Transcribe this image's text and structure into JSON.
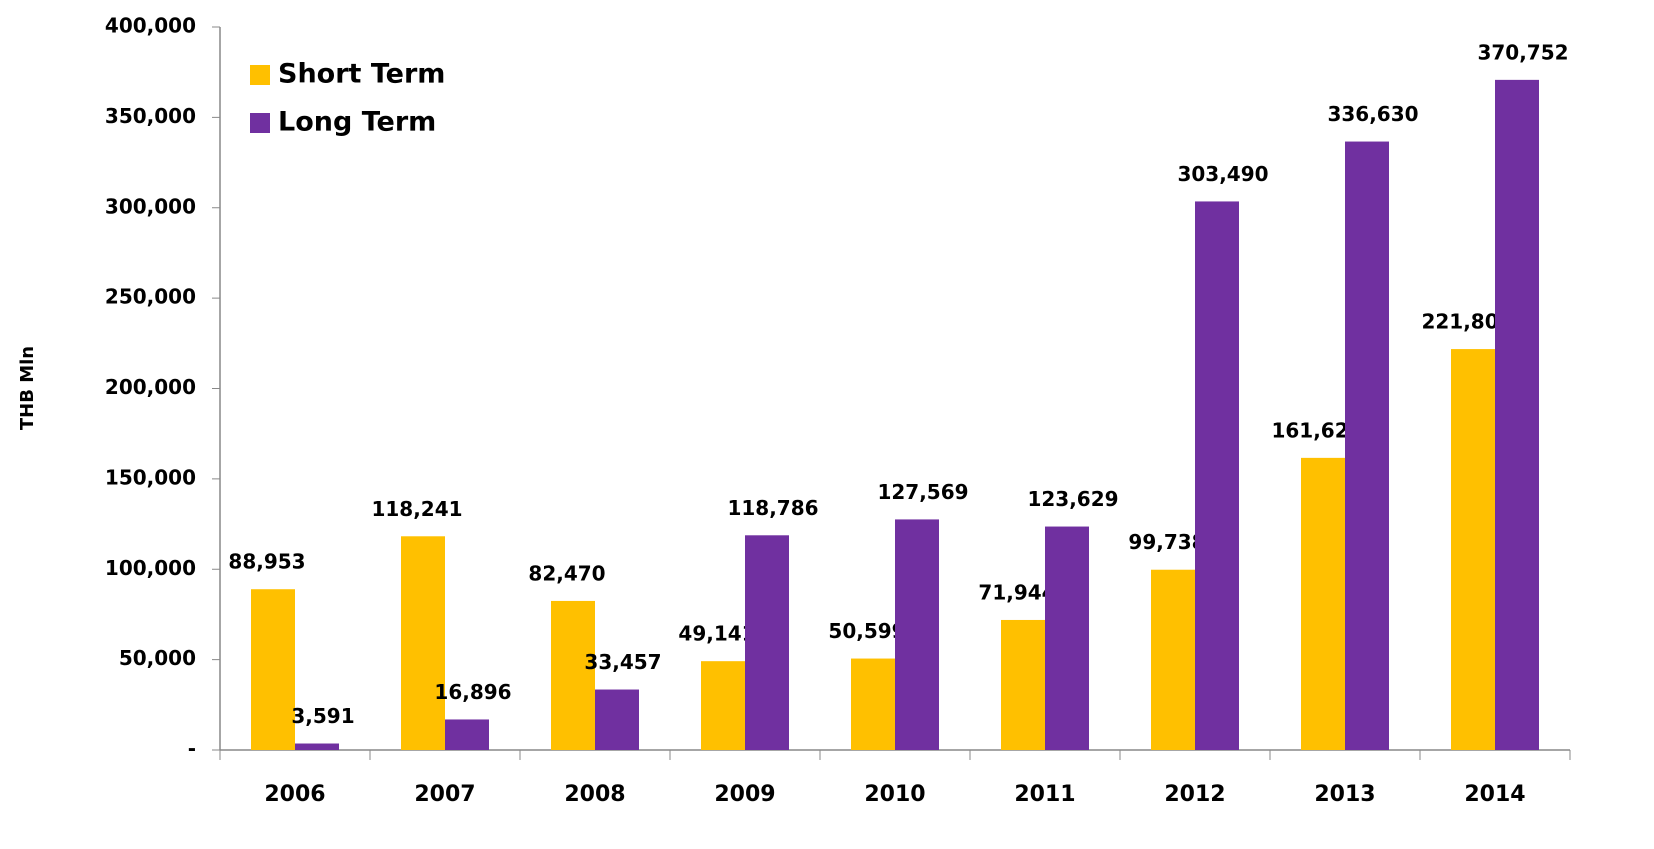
{
  "chart_data": {
    "type": "bar",
    "y_axis_label": "THB Mln",
    "categories": [
      "2006",
      "2007",
      "2008",
      "2009",
      "2010",
      "2011",
      "2012",
      "2013",
      "2014"
    ],
    "series": [
      {
        "name": "Short Term",
        "color": "#ffc000",
        "values": [
          88953,
          118241,
          82470,
          49141,
          50599,
          71944,
          99738,
          161625,
          221808
        ],
        "value_labels": [
          "88,953",
          "118,241",
          "82,470",
          "49,141",
          "50,599",
          "71,944",
          "99,738",
          "161,625",
          "221,808"
        ]
      },
      {
        "name": "Long Term",
        "color": "#7030a0",
        "values": [
          3591,
          16896,
          33457,
          118786,
          127569,
          123629,
          303490,
          336630,
          370752
        ],
        "value_labels": [
          "3,591",
          "16,896",
          "33,457",
          "118,786",
          "127,569",
          "123,629",
          "303,490",
          "336,630",
          "370,752"
        ]
      }
    ],
    "ylim": [
      0,
      400000
    ],
    "yticks": [
      {
        "value": 0,
        "label": "-"
      },
      {
        "value": 50000,
        "label": "50,000"
      },
      {
        "value": 100000,
        "label": "100,000"
      },
      {
        "value": 150000,
        "label": "150,000"
      },
      {
        "value": 200000,
        "label": "200,000"
      },
      {
        "value": 250000,
        "label": "250,000"
      },
      {
        "value": 300000,
        "label": "300,000"
      },
      {
        "value": 350000,
        "label": "350,000"
      },
      {
        "value": 400000,
        "label": "400,000"
      }
    ],
    "grid": false,
    "legend": "top-left"
  }
}
